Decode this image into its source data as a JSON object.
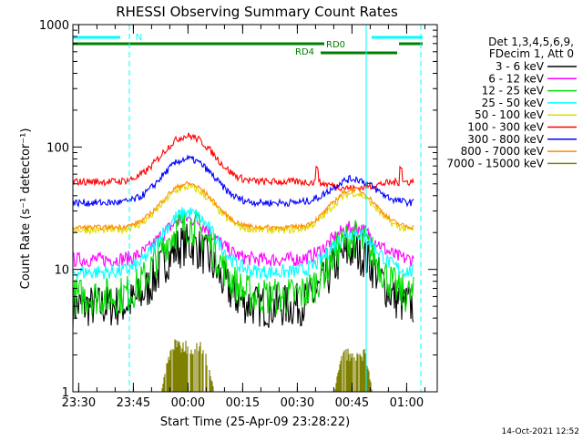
{
  "chart_data": {
    "type": "line",
    "title": "RHESSI Observing Summary Count Rates",
    "xlabel": "Start Time (25-Apr-09 23:28:22)",
    "ylabel": "Count Rate (s⁻¹ detector⁻¹)",
    "y_scale": "log",
    "ylim": [
      1,
      1000
    ],
    "xlim_minutes": [
      0,
      100
    ],
    "x_ticks": [
      {
        "label": "23:30",
        "t": 1.6
      },
      {
        "label": "23:45",
        "t": 16.6
      },
      {
        "label": "00:00",
        "t": 31.6
      },
      {
        "label": "00:15",
        "t": 46.6
      },
      {
        "label": "00:30",
        "t": 61.6
      },
      {
        "label": "00:45",
        "t": 76.6
      },
      {
        "label": "01:00",
        "t": 91.6
      }
    ],
    "y_ticks": [
      {
        "label": "1",
        "v": 1
      },
      {
        "label": "10",
        "v": 10
      },
      {
        "label": "100",
        "v": 100
      },
      {
        "label": "1000",
        "v": 1000
      }
    ],
    "legend_header": [
      "Det 1,3,4,5,6,9,",
      "FDecim 1, Att 0"
    ],
    "series": [
      {
        "name": "3 - 6 keV",
        "color": "#000000",
        "base": 5,
        "peak1": 16,
        "peak2": 14,
        "noise": 0.18
      },
      {
        "name": "6 - 12 keV",
        "color": "#ff00ff",
        "base": 12,
        "peak1": 26,
        "peak2": 22,
        "noise": 0.06
      },
      {
        "name": "12 - 25 keV",
        "color": "#00dd00",
        "base": 6,
        "peak1": 23,
        "peak2": 18,
        "noise": 0.16
      },
      {
        "name": "25 - 50 keV",
        "color": "#00ffff",
        "base": 9.5,
        "peak1": 29,
        "peak2": 20,
        "noise": 0.06
      },
      {
        "name": "50 - 100 keV",
        "color": "#dddd00",
        "base": 21,
        "peak1": 47,
        "peak2": 42,
        "noise": 0.03
      },
      {
        "name": "100 - 300 keV",
        "color": "#ff0000",
        "base": 52,
        "peak1": 123,
        "peak2": 46,
        "noise": 0.03
      },
      {
        "name": "300 - 800 keV",
        "color": "#0000ff",
        "base": 35,
        "peak1": 80,
        "peak2": 55,
        "noise": 0.03
      },
      {
        "name": "800 - 7000 keV",
        "color": "#ff8c00",
        "base": 22,
        "peak1": 50,
        "peak2": 45,
        "noise": 0.02
      },
      {
        "name": "7000 - 15000 keV",
        "color": "#808000",
        "base": 0,
        "peak1": 2.7,
        "peak2": 2.3,
        "noise": 0.3
      }
    ],
    "flags": [
      {
        "label": "N",
        "color": "#00ffff"
      },
      {
        "label": "RD0",
        "color": "#008000"
      },
      {
        "label": "RD4",
        "color": "#008000"
      }
    ],
    "timestamp": "14-Oct-2021 12:52"
  }
}
